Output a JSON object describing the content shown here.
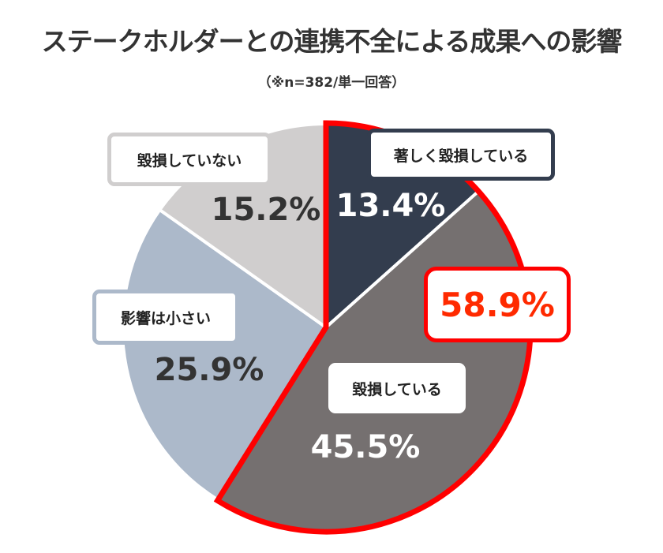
{
  "title": "ステークホルダーとの連携不全による成果への影響",
  "subtitle": "（※n=382/単一回答）",
  "chart_data": {
    "type": "pie",
    "start_angle_deg": 0,
    "direction": "clockwise",
    "slices": [
      {
        "label": "著しく毀損している",
        "value": 13.4,
        "display": "13.4%",
        "color": "#333d4e",
        "text_color": "#ffffff"
      },
      {
        "label": "毀損している",
        "value": 45.5,
        "display": "45.5%",
        "color": "#757070",
        "text_color": "#ffffff"
      },
      {
        "label": "影響は小さい",
        "value": 25.9,
        "display": "25.9%",
        "color": "#acb9ca",
        "text_color": "#333333"
      },
      {
        "label": "毀損していない",
        "value": 15.2,
        "display": "15.2%",
        "color": "#d0cece",
        "text_color": "#333333"
      }
    ],
    "highlight": {
      "slices": [
        "著しく毀損している",
        "毀損している"
      ],
      "total": "58.9%",
      "color": "#ff0000"
    }
  }
}
